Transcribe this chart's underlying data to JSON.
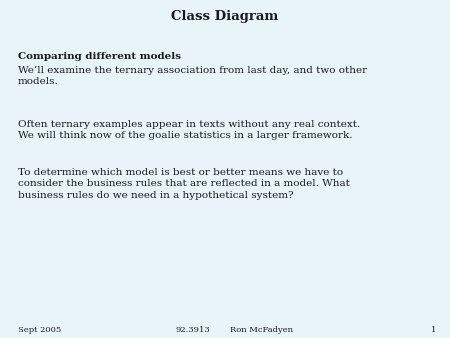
{
  "title": "Class Diagram",
  "background_color": "#e8f4f8",
  "title_fontsize": 9.5,
  "title_fontweight": "bold",
  "body_fontsize": 7.5,
  "footer_fontsize": 6.0,
  "subtitle": "Comparing different models",
  "subtitle_fontsize": 7.5,
  "subtitle_fontweight": "bold",
  "para1": "We’ll examine the ternary association from last day, and two other\nmodels.",
  "para2": "Often ternary examples appear in texts without any real context.\nWe will think now of the goalie statistics in a larger framework.",
  "para3": "To determine which model is best or better means we have to\nconsider the business rules that are reflected in a model. What\nbusiness rules do we need in a hypothetical system?",
  "footer_left": "Sept 2005",
  "footer_center": "92.3913",
  "footer_right_label": "Ron McFadyen",
  "footer_page": "1",
  "text_color": "#1a1a1a",
  "font_family": "DejaVu Serif"
}
